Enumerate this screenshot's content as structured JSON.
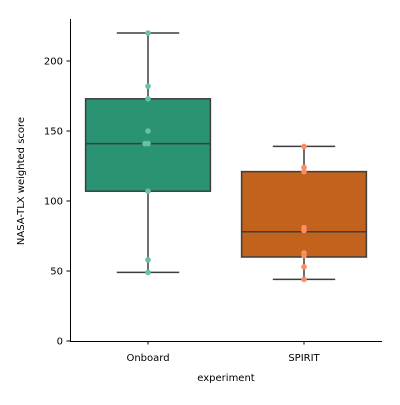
{
  "chart_data": {
    "type": "box",
    "title": "",
    "xlabel": "experiment",
    "ylabel": "NASA-TLX weighted score",
    "ylim": [
      0,
      230
    ],
    "yticks": [
      0,
      50,
      100,
      150,
      200
    ],
    "grid": false,
    "categories": [
      "Onboard",
      "SPIRIT"
    ],
    "series": [
      {
        "category": "Onboard",
        "box_color": "#2a9373",
        "point_color": "#66c2a5",
        "whisker_low": 49,
        "q1": 107,
        "median": 141,
        "q3": 173,
        "whisker_high": 220,
        "points": [
          220,
          182,
          173,
          150,
          141,
          141,
          107,
          58,
          49
        ]
      },
      {
        "category": "SPIRIT",
        "box_color": "#c1621d",
        "point_color": "#fc8d62",
        "whisker_low": 44,
        "q1": 60,
        "median": 78,
        "q3": 121,
        "whisker_high": 139,
        "points": [
          139,
          124,
          121,
          81,
          79,
          63,
          61,
          53,
          44
        ]
      }
    ]
  }
}
